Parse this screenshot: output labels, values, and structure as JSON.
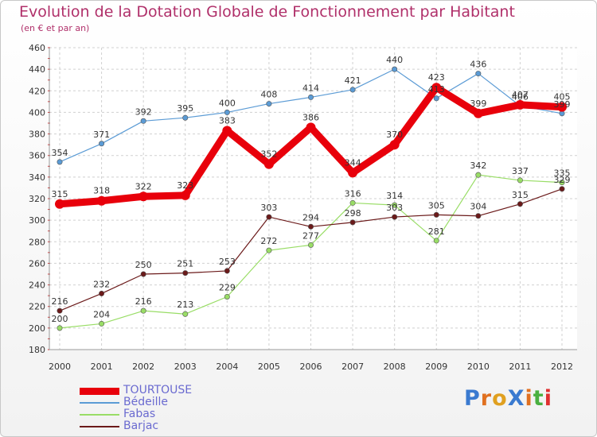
{
  "title": "Evolution de la Dotation Globale de Fonctionnement par Habitant",
  "subtitle": "(en € et par an)",
  "logo": {
    "text": "ProXiti",
    "letters": [
      {
        "ch": "P",
        "color": "#3a7ad0"
      },
      {
        "ch": "r",
        "color": "#e07020"
      },
      {
        "ch": "o",
        "color": "#e0a020"
      },
      {
        "ch": "X",
        "color": "#3a7ad0"
      },
      {
        "ch": "i",
        "color": "#e07020"
      },
      {
        "ch": "t",
        "color": "#4ab040"
      },
      {
        "ch": "i",
        "color": "#e03030"
      }
    ]
  },
  "chart_data": {
    "type": "line",
    "title": "Evolution de la Dotation Globale de Fonctionnement par Habitant",
    "subtitle": "(en € et par an)",
    "xlabel": "",
    "ylabel": "",
    "x": [
      "2000",
      "2001",
      "2002",
      "2003",
      "2004",
      "2005",
      "2006",
      "2007",
      "2008",
      "2009",
      "2010",
      "2011",
      "2012"
    ],
    "ylim": [
      180,
      460
    ],
    "yticks": [
      180,
      200,
      220,
      240,
      260,
      280,
      300,
      320,
      340,
      360,
      380,
      400,
      420,
      440,
      460
    ],
    "grid": true,
    "legend_position": "bottom-left",
    "series": [
      {
        "name": "TOURTOUSE",
        "color": "#e8000b",
        "highlight": true,
        "values": [
          315,
          318,
          322,
          323,
          383,
          352,
          386,
          344,
          370,
          423,
          399,
          407,
          405
        ]
      },
      {
        "name": "Bédeille",
        "color": "#5b9bd5",
        "values": [
          354,
          371,
          392,
          395,
          400,
          408,
          414,
          421,
          440,
          413,
          436,
          406,
          399
        ]
      },
      {
        "name": "Fabas",
        "color": "#99dd66",
        "values": [
          200,
          204,
          216,
          213,
          229,
          272,
          277,
          316,
          314,
          281,
          342,
          337,
          335
        ]
      },
      {
        "name": "Barjac",
        "color": "#6b1a1a",
        "values": [
          216,
          232,
          250,
          251,
          253,
          303,
          294,
          298,
          303,
          305,
          304,
          315,
          329
        ]
      }
    ]
  }
}
